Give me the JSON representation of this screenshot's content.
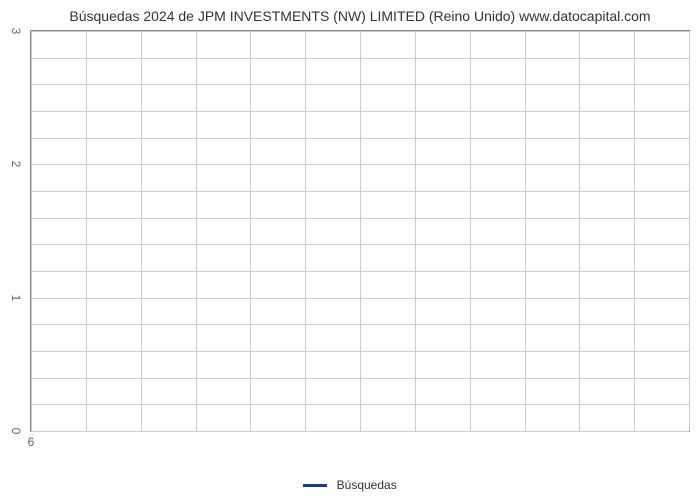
{
  "chart": {
    "type": "line",
    "title": "Búsquedas 2024 de JPM INVESTMENTS (NW) LIMITED (Reino Unido) www.datocapital.com",
    "title_fontsize": 14,
    "title_color": "#333333",
    "background_color": "#ffffff",
    "border_color": "#888888",
    "grid_color": "#cccccc",
    "y_axis": {
      "min": 0,
      "max": 3,
      "major_ticks": [
        0,
        1,
        2,
        3
      ],
      "minor_tick_count": 4,
      "tick_label_fontsize": 12,
      "tick_label_color": "#666666",
      "tick_label_rotated": true
    },
    "x_axis": {
      "ticks": [
        "6"
      ],
      "tick_label_fontsize": 12,
      "tick_label_color": "#666666",
      "grid_lines": 12
    },
    "series": [
      {
        "name": "Búsquedas",
        "color": "#1f3a93",
        "line_width": 3,
        "data": []
      }
    ],
    "legend": {
      "position": "bottom-center",
      "fontsize": 12,
      "label": "Búsquedas",
      "swatch_color": "#1f3a93"
    }
  }
}
